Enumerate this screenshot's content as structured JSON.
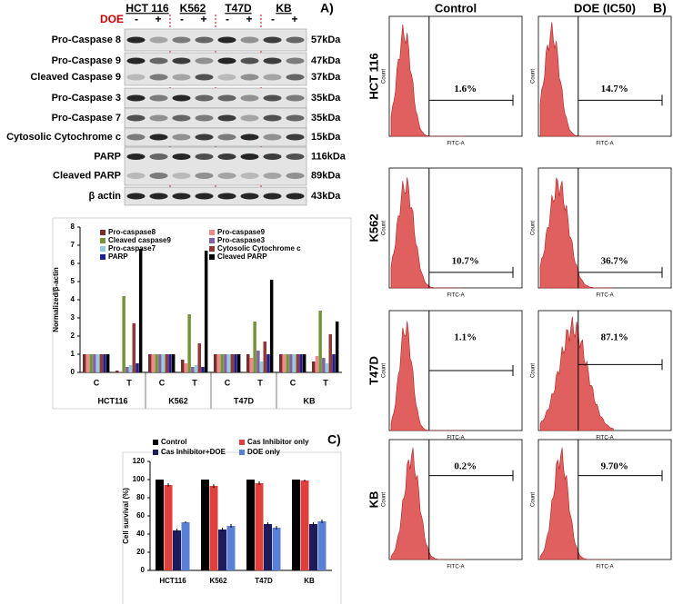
{
  "panel_labels": [
    "A)",
    "B)",
    "C)"
  ],
  "blot": {
    "cell_lines": [
      "HCT 116",
      "K562",
      "T47D",
      "KB"
    ],
    "treatment_label": "DOE",
    "lane_signs": [
      "-",
      "+"
    ],
    "rows": [
      {
        "labels": [
          "Pro-Caspase 8"
        ],
        "sizes": [
          "57kDa"
        ]
      },
      {
        "labels": [
          "Pro-Caspase 9",
          "Cleaved Caspase 9"
        ],
        "sizes": [
          "47kDa",
          "37kDa"
        ]
      },
      {
        "labels": [
          "Pro-Caspase 3"
        ],
        "sizes": [
          "35kDa"
        ]
      },
      {
        "labels": [
          "Pro-Caspase 7"
        ],
        "sizes": [
          "35kDa"
        ]
      },
      {
        "labels": [
          "Cytosolic Cytochrome c"
        ],
        "sizes": [
          "15kDa"
        ]
      },
      {
        "labels": [
          "PARP",
          "Cleaved PARP"
        ],
        "sizes": [
          "116kDa",
          "89kDa"
        ]
      },
      {
        "labels": [
          "β actin"
        ],
        "sizes": [
          "43kDa"
        ]
      }
    ]
  },
  "flow": {
    "columns": [
      "Control",
      "DOE (IC50)"
    ],
    "rows": [
      "HCT 116",
      "K562",
      "T47D",
      "KB"
    ],
    "x_label": "FITC-A",
    "y_label": "Count",
    "percentages": [
      [
        "1.6%",
        "14.7%"
      ],
      [
        "10.7%",
        "36.7%"
      ],
      [
        "1.1%",
        "87.1%"
      ],
      [
        "0.2%",
        "9.70%"
      ]
    ]
  },
  "chart_data": [
    {
      "type": "bar",
      "y_label": "Normalized/β-actin",
      "categories": [
        "C",
        "T",
        "C",
        "T",
        "C",
        "T",
        "C",
        "T"
      ],
      "groups": [
        "HCT116",
        "K562",
        "T47D",
        "KB"
      ],
      "ylim": [
        0,
        8
      ],
      "yticks": [
        0,
        1,
        2,
        3,
        4,
        5,
        6,
        7,
        8
      ],
      "series": [
        {
          "name": "Pro-caspase8",
          "color": "#7b2c2c",
          "values": [
            1,
            0.1,
            1,
            0.7,
            1,
            1.0,
            1,
            0.6
          ]
        },
        {
          "name": "Pro-caspase9",
          "color": "#f08a8a",
          "values": [
            1,
            0.05,
            1,
            0.5,
            1,
            0.8,
            1,
            0.9
          ]
        },
        {
          "name": "Cleaved caspase9",
          "color": "#77933c",
          "values": [
            1,
            4.2,
            1,
            3.2,
            1,
            2.8,
            1,
            3.4
          ]
        },
        {
          "name": "Pro-caspase3",
          "color": "#8064a2",
          "values": [
            1,
            0.3,
            1,
            0.3,
            1,
            1.2,
            1,
            0.8
          ]
        },
        {
          "name": "Pro-caspase7",
          "color": "#93cddd",
          "values": [
            1,
            0.4,
            1,
            0.4,
            1,
            0.6,
            1,
            0.5
          ]
        },
        {
          "name": "Cytosolic Cytochrome c",
          "color": "#953735",
          "values": [
            1,
            2.7,
            1,
            1.6,
            1,
            1.7,
            1,
            2.1
          ]
        },
        {
          "name": "PARP",
          "color": "#1f1f8f",
          "values": [
            1,
            0.5,
            1,
            0.3,
            1,
            1.0,
            1,
            1.0
          ]
        },
        {
          "name": "Cleaved PARP",
          "color": "#000000",
          "values": [
            1,
            6.8,
            1,
            6.7,
            1,
            5.1,
            1,
            2.8
          ]
        }
      ]
    },
    {
      "type": "bar",
      "y_label": "Cell survival (%)",
      "categories": [
        "HCT116",
        "K562",
        "T47D",
        "KB"
      ],
      "ylim": [
        0,
        120
      ],
      "yticks": [
        0,
        20,
        40,
        60,
        80,
        100,
        120
      ],
      "series": [
        {
          "name": "Control",
          "color": "#000000",
          "values": [
            100,
            100,
            100,
            100
          ],
          "errors": [
            0,
            0,
            0,
            0
          ]
        },
        {
          "name": "Cas Inhibitor only",
          "color": "#e0403c",
          "values": [
            94,
            93,
            96,
            99
          ],
          "errors": [
            2,
            2,
            2,
            1
          ]
        },
        {
          "name": "Cas Inhibitor+DOE",
          "color": "#1c1c5c",
          "values": [
            44,
            45,
            51,
            51
          ],
          "errors": [
            2,
            2,
            2,
            2
          ]
        },
        {
          "name": "DOE only",
          "color": "#5a80d6",
          "values": [
            53,
            49,
            47,
            54
          ],
          "errors": [
            1,
            2,
            2,
            2
          ]
        }
      ]
    }
  ]
}
